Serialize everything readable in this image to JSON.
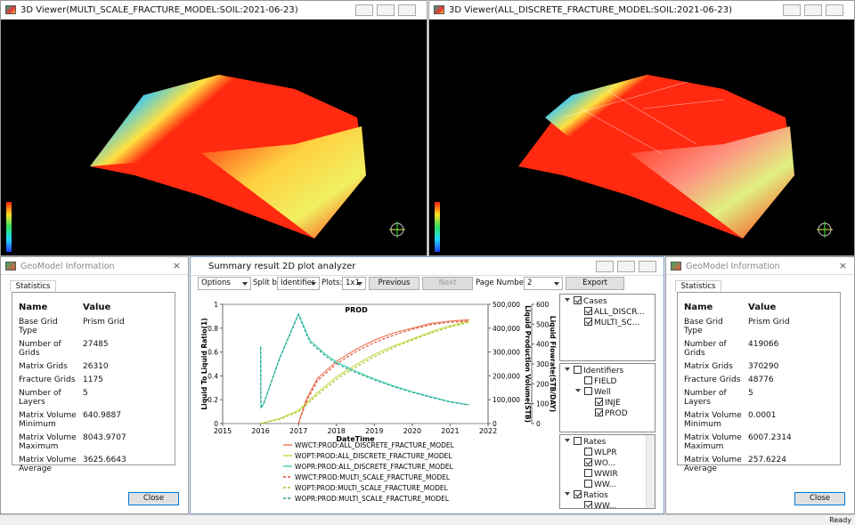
{
  "viewers": [
    {
      "title": "3D Viewer(MULTI_SCALE_FRACTURE_MODEL:SOIL:2021-06-23)"
    },
    {
      "title": "3D Viewer(ALL_DISCRETE_FRACTURE_MODEL:SOIL:2021-06-23)"
    }
  ],
  "info_panels": [
    {
      "title": "GeoModel Information",
      "tab": "Statistics",
      "columns": [
        "Name",
        "Value"
      ],
      "rows": [
        [
          "Base Grid Type",
          "Prism Grid"
        ],
        [
          "Number of Grids",
          "27485"
        ],
        [
          "Matrix Grids",
          "26310"
        ],
        [
          "Fracture Grids",
          "1175"
        ],
        [
          "Number of Layers",
          "5"
        ],
        [
          "Matrix Volume Minimum",
          "640.9887"
        ],
        [
          "Matrix Volume Maximum",
          "8043.9707"
        ],
        [
          "Matrix Volume Average",
          "3625.6643"
        ]
      ],
      "button": "Close"
    },
    {
      "title": "GeoModel Information",
      "tab": "Statistics",
      "columns": [
        "Name",
        "Value"
      ],
      "rows": [
        [
          "Base Grid Type",
          "Prism Grid"
        ],
        [
          "Number of Grids",
          "419066"
        ],
        [
          "Matrix Grids",
          "370290"
        ],
        [
          "Fracture Grids",
          "48776"
        ],
        [
          "Number of Layers",
          "5"
        ],
        [
          "Matrix Volume Minimum",
          "0.0001"
        ],
        [
          "Matrix Volume Maximum",
          "6007.2314"
        ],
        [
          "Matrix Volume Average",
          "257.6224"
        ]
      ],
      "button": "Close"
    }
  ],
  "analyzer": {
    "title": "Summary result 2D plot analyzer",
    "toolbar": {
      "options": "Options",
      "split_label": "Split by",
      "split_value": "Identifier",
      "plots_label": "Plots:",
      "plots_value": "1x1",
      "previous": "Previous",
      "next": "Next",
      "page_label": "Page Number:",
      "page_value": "2",
      "export": "Export"
    },
    "plot": {
      "type": "line",
      "title": "PROD",
      "xlabel": "DateTime",
      "ylabel": "Liquid To Liquid Ratio(1)",
      "y2label": "Liquid Production Volume(STB)",
      "y3label": "Liquid Flowrate(STB/DAY)",
      "xlim": [
        2015,
        2022
      ],
      "xticks": [
        2015,
        2016,
        2017,
        2018,
        2019,
        2020,
        2021,
        2022
      ],
      "ylim": [
        0,
        1
      ],
      "yticks": [
        0,
        0.2,
        0.4,
        0.6,
        0.8,
        1
      ],
      "y2lim": [
        0,
        500000
      ],
      "y2ticks": [
        0,
        {
          "value": 100000,
          "label": "100,000"
        },
        {
          "value": 200000,
          "label": "200,000"
        },
        {
          "value": 300000,
          "label": "300,000"
        },
        {
          "value": 400000,
          "label": "400,000"
        },
        {
          "value": 500000,
          "label": "500,000"
        }
      ],
      "y3lim": [
        0,
        600
      ],
      "y3ticks": [
        0,
        100,
        200,
        300,
        400,
        500,
        600
      ],
      "series": [
        {
          "name": "WWCT:PROD:ALL_DISCRETE_FRACTURE_MODEL",
          "color": "#f07a5a",
          "style": "solid",
          "axis": "y",
          "x": [
            2017,
            2017.2,
            2017.5,
            2018,
            2018.5,
            2019,
            2019.5,
            2020,
            2020.5,
            2021,
            2021.5
          ],
          "values": [
            0,
            0.2,
            0.38,
            0.52,
            0.62,
            0.7,
            0.76,
            0.8,
            0.84,
            0.86,
            0.87
          ]
        },
        {
          "name": "WOPT:PROD:ALL_DISCRETE_FRACTURE_MODEL",
          "color": "#c9d84e",
          "style": "solid",
          "axis": "y2",
          "x": [
            2016,
            2016.5,
            2017,
            2017.5,
            2018,
            2018.5,
            2019,
            2019.5,
            2020,
            2020.5,
            2021,
            2021.5
          ],
          "values": [
            0,
            20000,
            55000,
            130000,
            195000,
            245000,
            290000,
            325000,
            355000,
            385000,
            410000,
            430000
          ]
        },
        {
          "name": "WOPR:PROD:ALL_DISCRETE_FRACTURE_MODEL",
          "color": "#4fd8b0",
          "style": "solid",
          "axis": "y3",
          "x": [
            2016,
            2016.01,
            2016.08,
            2016.5,
            2017,
            2017.3,
            2017.7,
            2018,
            2018.5,
            2019,
            2019.5,
            2020,
            2020.5,
            2021,
            2021.5
          ],
          "values": [
            390,
            80,
            100,
            330,
            552,
            420,
            350,
            310,
            265,
            225,
            190,
            160,
            135,
            110,
            95
          ]
        },
        {
          "name": "WWCT:PROD:MULTI_SCALE_FRACTURE_MODEL",
          "color": "#d85038",
          "style": "dashed",
          "axis": "y",
          "x": [
            2017,
            2017.2,
            2017.5,
            2018,
            2018.5,
            2019,
            2019.5,
            2020,
            2020.5,
            2021,
            2021.5
          ],
          "values": [
            0,
            0.18,
            0.36,
            0.5,
            0.6,
            0.68,
            0.74,
            0.79,
            0.83,
            0.85,
            0.86
          ]
        },
        {
          "name": "WOPT:PROD:MULTI_SCALE_FRACTURE_MODEL",
          "color": "#a8c828",
          "style": "dashed",
          "axis": "y2",
          "x": [
            2016,
            2016.5,
            2017,
            2017.5,
            2018,
            2018.5,
            2019,
            2019.5,
            2020,
            2020.5,
            2021,
            2021.5
          ],
          "values": [
            0,
            18000,
            50000,
            120000,
            185000,
            235000,
            280000,
            318000,
            350000,
            380000,
            405000,
            425000
          ]
        },
        {
          "name": "WOPR:PROD:MULTI_SCALE_FRACTURE_MODEL",
          "color": "#2a9e98",
          "style": "dashed",
          "axis": "y3",
          "x": [
            2016,
            2016.01,
            2016.08,
            2016.5,
            2017,
            2017.3,
            2017.7,
            2018,
            2018.5,
            2019,
            2019.5,
            2020,
            2020.5,
            2021,
            2021.5
          ],
          "values": [
            385,
            78,
            98,
            325,
            548,
            410,
            342,
            302,
            258,
            220,
            186,
            157,
            132,
            108,
            93
          ]
        }
      ]
    },
    "tree": {
      "panels": [
        [
          {
            "label": "Cases",
            "checked": true,
            "expanded": true,
            "children": [
              {
                "label": "ALL_DISCR...",
                "checked": true
              },
              {
                "label": "MULTI_SC...",
                "checked": true
              }
            ]
          }
        ],
        [
          {
            "label": "Identifiers",
            "checked": false,
            "expanded": true,
            "children": [
              {
                "label": "FIELD",
                "checked": false
              },
              {
                "label": "Well",
                "checked": false,
                "expanded": true,
                "children": [
                  {
                    "label": "INJE",
                    "checked": true
                  },
                  {
                    "label": "PROD",
                    "checked": true
                  }
                ]
              }
            ]
          }
        ],
        [
          {
            "label": "Rates",
            "checked": false,
            "expanded": true,
            "children": [
              {
                "label": "WLPR",
                "checked": false
              },
              {
                "label": "WO...",
                "checked": true
              },
              {
                "label": "WWIR",
                "checked": false
              },
              {
                "label": "WW...",
                "checked": false
              }
            ]
          },
          {
            "label": "Ratios",
            "checked": true,
            "expanded": true,
            "children": [
              {
                "label": "WW...",
                "checked": true
              }
            ]
          }
        ]
      ]
    }
  },
  "status": "Ready"
}
